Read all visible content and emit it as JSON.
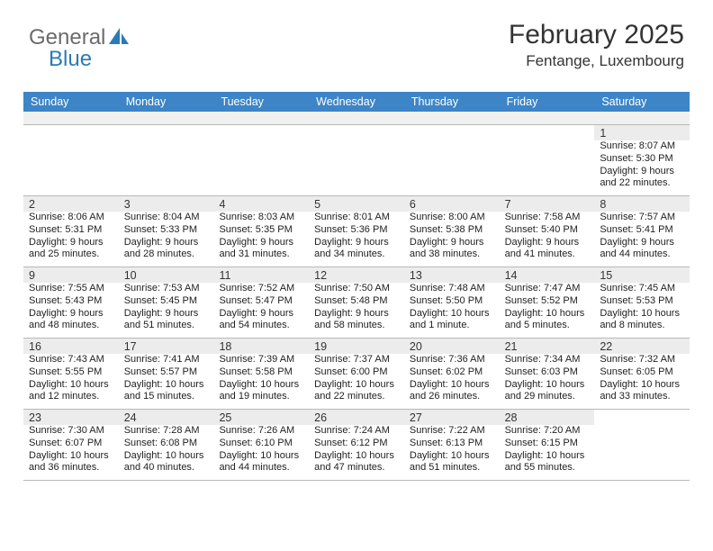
{
  "brand": {
    "text1": "General",
    "text2": "Blue",
    "color1": "#6b6b6b",
    "color2": "#2a7ab9"
  },
  "title": "February 2025",
  "location": "Fentange, Luxembourg",
  "theme": {
    "header_bg": "#3d85c6",
    "header_fg": "#ffffff",
    "strip_bg": "#f0f0f0",
    "daynum_bg": "#ececec",
    "border": "#b8b8b8"
  },
  "day_headers": [
    "Sunday",
    "Monday",
    "Tuesday",
    "Wednesday",
    "Thursday",
    "Friday",
    "Saturday"
  ],
  "weeks": [
    [
      null,
      null,
      null,
      null,
      null,
      null,
      {
        "n": "1",
        "sr": "8:07 AM",
        "ss": "5:30 PM",
        "dl": "9 hours and 22 minutes."
      }
    ],
    [
      {
        "n": "2",
        "sr": "8:06 AM",
        "ss": "5:31 PM",
        "dl": "9 hours and 25 minutes."
      },
      {
        "n": "3",
        "sr": "8:04 AM",
        "ss": "5:33 PM",
        "dl": "9 hours and 28 minutes."
      },
      {
        "n": "4",
        "sr": "8:03 AM",
        "ss": "5:35 PM",
        "dl": "9 hours and 31 minutes."
      },
      {
        "n": "5",
        "sr": "8:01 AM",
        "ss": "5:36 PM",
        "dl": "9 hours and 34 minutes."
      },
      {
        "n": "6",
        "sr": "8:00 AM",
        "ss": "5:38 PM",
        "dl": "9 hours and 38 minutes."
      },
      {
        "n": "7",
        "sr": "7:58 AM",
        "ss": "5:40 PM",
        "dl": "9 hours and 41 minutes."
      },
      {
        "n": "8",
        "sr": "7:57 AM",
        "ss": "5:41 PM",
        "dl": "9 hours and 44 minutes."
      }
    ],
    [
      {
        "n": "9",
        "sr": "7:55 AM",
        "ss": "5:43 PM",
        "dl": "9 hours and 48 minutes."
      },
      {
        "n": "10",
        "sr": "7:53 AM",
        "ss": "5:45 PM",
        "dl": "9 hours and 51 minutes."
      },
      {
        "n": "11",
        "sr": "7:52 AM",
        "ss": "5:47 PM",
        "dl": "9 hours and 54 minutes."
      },
      {
        "n": "12",
        "sr": "7:50 AM",
        "ss": "5:48 PM",
        "dl": "9 hours and 58 minutes."
      },
      {
        "n": "13",
        "sr": "7:48 AM",
        "ss": "5:50 PM",
        "dl": "10 hours and 1 minute."
      },
      {
        "n": "14",
        "sr": "7:47 AM",
        "ss": "5:52 PM",
        "dl": "10 hours and 5 minutes."
      },
      {
        "n": "15",
        "sr": "7:45 AM",
        "ss": "5:53 PM",
        "dl": "10 hours and 8 minutes."
      }
    ],
    [
      {
        "n": "16",
        "sr": "7:43 AM",
        "ss": "5:55 PM",
        "dl": "10 hours and 12 minutes."
      },
      {
        "n": "17",
        "sr": "7:41 AM",
        "ss": "5:57 PM",
        "dl": "10 hours and 15 minutes."
      },
      {
        "n": "18",
        "sr": "7:39 AM",
        "ss": "5:58 PM",
        "dl": "10 hours and 19 minutes."
      },
      {
        "n": "19",
        "sr": "7:37 AM",
        "ss": "6:00 PM",
        "dl": "10 hours and 22 minutes."
      },
      {
        "n": "20",
        "sr": "7:36 AM",
        "ss": "6:02 PM",
        "dl": "10 hours and 26 minutes."
      },
      {
        "n": "21",
        "sr": "7:34 AM",
        "ss": "6:03 PM",
        "dl": "10 hours and 29 minutes."
      },
      {
        "n": "22",
        "sr": "7:32 AM",
        "ss": "6:05 PM",
        "dl": "10 hours and 33 minutes."
      }
    ],
    [
      {
        "n": "23",
        "sr": "7:30 AM",
        "ss": "6:07 PM",
        "dl": "10 hours and 36 minutes."
      },
      {
        "n": "24",
        "sr": "7:28 AM",
        "ss": "6:08 PM",
        "dl": "10 hours and 40 minutes."
      },
      {
        "n": "25",
        "sr": "7:26 AM",
        "ss": "6:10 PM",
        "dl": "10 hours and 44 minutes."
      },
      {
        "n": "26",
        "sr": "7:24 AM",
        "ss": "6:12 PM",
        "dl": "10 hours and 47 minutes."
      },
      {
        "n": "27",
        "sr": "7:22 AM",
        "ss": "6:13 PM",
        "dl": "10 hours and 51 minutes."
      },
      {
        "n": "28",
        "sr": "7:20 AM",
        "ss": "6:15 PM",
        "dl": "10 hours and 55 minutes."
      },
      null
    ]
  ],
  "labels": {
    "sunrise": "Sunrise:",
    "sunset": "Sunset:",
    "daylight": "Daylight:"
  }
}
